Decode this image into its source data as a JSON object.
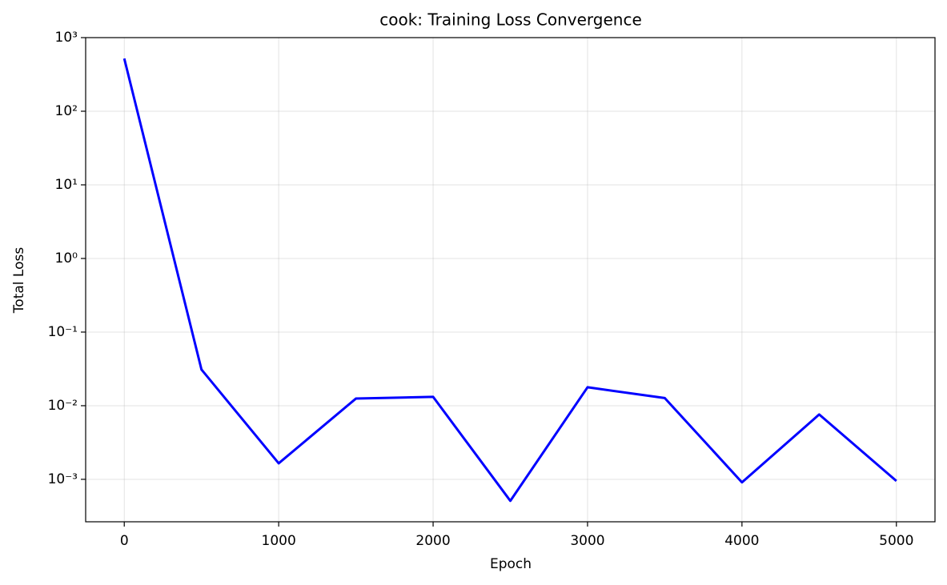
{
  "chart_data": {
    "type": "line",
    "title": "cook: Training Loss Convergence",
    "x_label": "Epoch",
    "y_label": "Total Loss",
    "x": [
      0,
      500,
      1000,
      1500,
      2000,
      2500,
      3000,
      3500,
      4000,
      4500,
      5000
    ],
    "series": [
      {
        "name": "Total Loss",
        "color": "#0000ff",
        "values": [
          520,
          0.031,
          0.00165,
          0.0125,
          0.0132,
          0.00051,
          0.0178,
          0.0127,
          0.00091,
          0.0076,
          0.00095
        ]
      }
    ],
    "xlim": [
      -250,
      5250
    ],
    "xticks": [
      0,
      1000,
      2000,
      3000,
      4000,
      5000
    ],
    "ylim": [
      0.000265,
      1000
    ],
    "yscale": "log",
    "yticks": [
      {
        "value": 0.001,
        "label": "10⁻³"
      },
      {
        "value": 0.01,
        "label": "10⁻²"
      },
      {
        "value": 0.1,
        "label": "10⁻¹"
      },
      {
        "value": 1,
        "label": "10⁰"
      },
      {
        "value": 10,
        "label": "10¹"
      },
      {
        "value": 100,
        "label": "10²"
      },
      {
        "value": 1000,
        "label": "10³"
      }
    ],
    "grid": true
  }
}
